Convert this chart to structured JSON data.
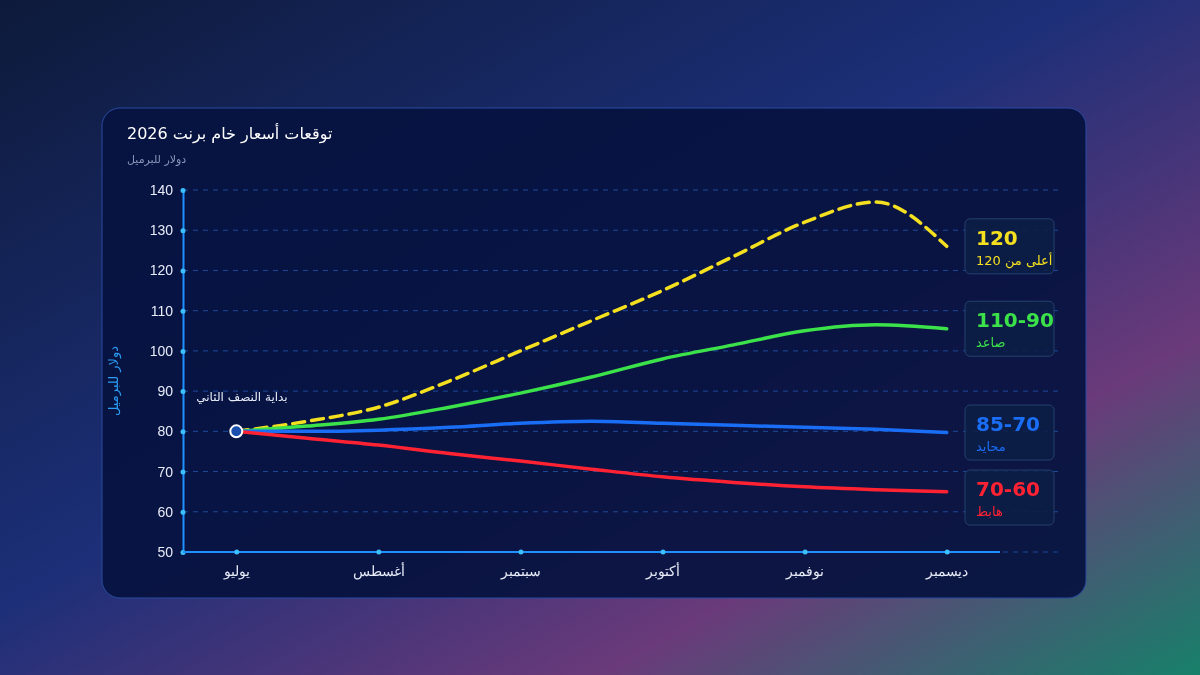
{
  "chart_data": {
    "type": "line",
    "title": "توقعات أسعار خام برنت 2026",
    "subtitle": "دولار للبرميل",
    "ylabel": "دولار للبرميل",
    "categories": [
      "يوليو",
      null,
      "أغسطس",
      null,
      "سبتمبر",
      null,
      "أكتوبر",
      null,
      "نوفمبر",
      null,
      "ديسمبر"
    ],
    "ylim": [
      50,
      140
    ],
    "yticks": [
      50,
      60,
      70,
      80,
      90,
      100,
      110,
      120,
      130,
      140
    ],
    "grid": "y",
    "legend": "right",
    "series": [
      {
        "name": "أعلى من 120",
        "color": "#f5e020",
        "line_style": "dashed",
        "values": [
          80,
          82.5,
          86,
          92.5,
          100,
          107.5,
          115,
          123.5,
          132,
          137,
          126
        ]
      },
      {
        "name": "صاعد",
        "color": "#3be24a",
        "values": [
          80,
          81.3,
          83,
          86,
          89.5,
          93.5,
          98,
          101.5,
          105,
          106.5,
          105.5
        ]
      },
      {
        "name": "محايد",
        "color": "#1a6ef5",
        "values": [
          80,
          80,
          80.3,
          81,
          82,
          82.5,
          82,
          81.5,
          81,
          80.5,
          79.7
        ]
      },
      {
        "name": "هابط",
        "color": "#ff2233",
        "values": [
          80,
          78.3,
          76.6,
          74.5,
          72.6,
          70.6,
          68.7,
          67.3,
          66.2,
          65.5,
          65
        ]
      }
    ],
    "annotations": [
      "120",
      "110-90",
      "85-70",
      "70-60",
      {
        "text": "بداية النصف الثاني",
        "x": "يوليو",
        "y": 80
      }
    ]
  }
}
